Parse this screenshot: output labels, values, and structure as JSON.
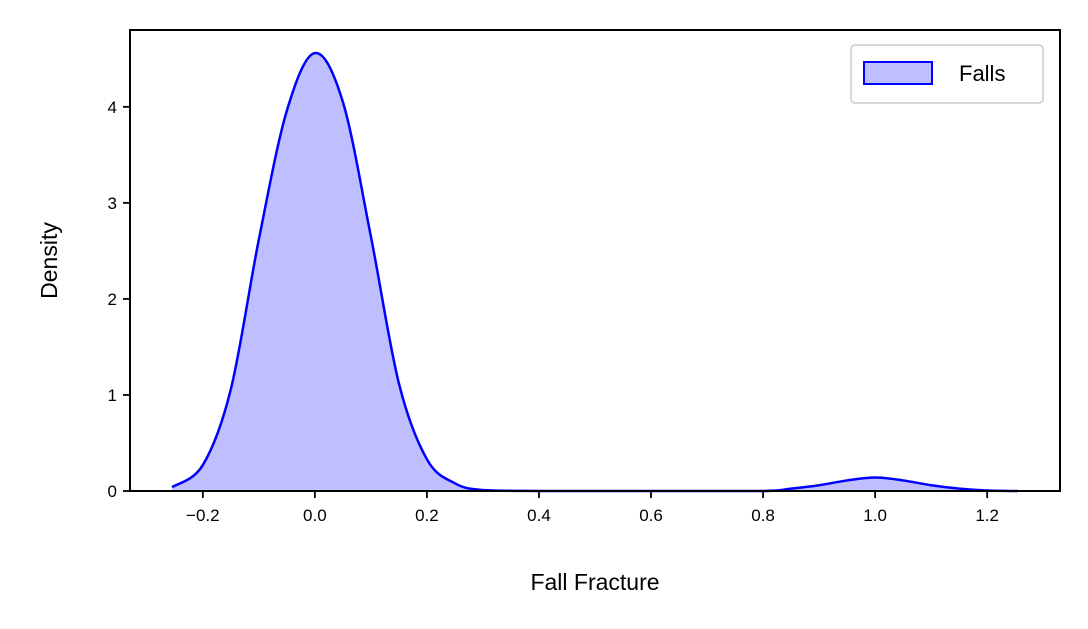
{
  "chart_data": {
    "type": "area",
    "title": "",
    "xlabel": "Fall Fracture",
    "ylabel": "Density",
    "xlim": [
      -0.33,
      1.33
    ],
    "ylim": [
      0,
      4.8
    ],
    "x_ticks": [
      -0.2,
      0.0,
      0.2,
      0.4,
      0.6,
      0.8,
      1.0,
      1.2
    ],
    "x_tick_labels": [
      "−0.2",
      "0.0",
      "0.2",
      "0.4",
      "0.6",
      "0.8",
      "1.0",
      "1.2"
    ],
    "y_ticks": [
      0,
      1,
      2,
      3,
      4
    ],
    "y_tick_labels": [
      "0",
      "1",
      "2",
      "3",
      "4"
    ],
    "grid": false,
    "legend_position": "top-right",
    "series": [
      {
        "name": "Falls",
        "line_color": "#0000ff",
        "fill_color": "#bfbfff",
        "x": [
          -0.255,
          -0.2,
          -0.15,
          -0.1,
          -0.05,
          0.0,
          0.05,
          0.1,
          0.15,
          0.2,
          0.25,
          0.3,
          0.4,
          0.6,
          0.8,
          0.85,
          0.9,
          0.95,
          1.0,
          1.05,
          1.1,
          1.15,
          1.2,
          1.255
        ],
        "y": [
          0.04,
          0.27,
          1.06,
          2.62,
          3.96,
          4.56,
          4.05,
          2.65,
          1.12,
          0.33,
          0.08,
          0.01,
          0.0,
          0.0,
          0.0,
          0.025,
          0.06,
          0.11,
          0.14,
          0.11,
          0.06,
          0.025,
          0.005,
          0.0
        ]
      }
    ]
  }
}
